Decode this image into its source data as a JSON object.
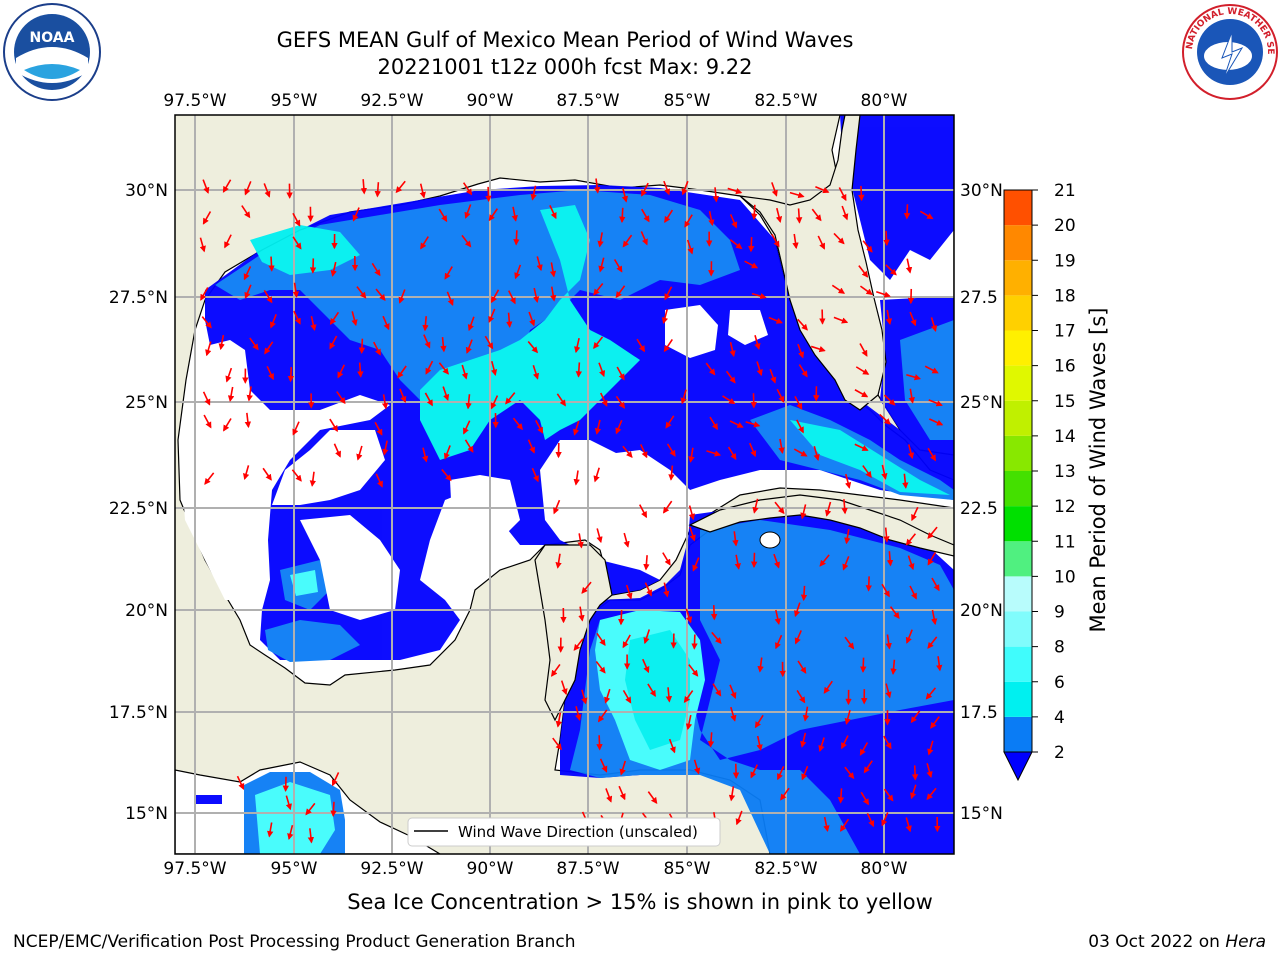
{
  "header": {
    "title_line1": "GEFS MEAN Gulf of Mexico Mean Period of Wind Waves",
    "title_line2": "20221001 t12z 000h fcst   Max: 9.22"
  },
  "map": {
    "lon_ticks": [
      "97.5°W",
      "95°W",
      "92.5°W",
      "90°W",
      "87.5°W",
      "85°W",
      "82.5°W",
      "80°W"
    ],
    "lat_ticks": [
      "30°N",
      "27.5°N",
      "25°N",
      "22.5°N",
      "20°N",
      "17.5°N",
      "15°N"
    ],
    "lat_ticks_right": [
      "30°N",
      "27.5",
      "25°N",
      "22.5",
      "20°N",
      "17.5",
      "15°N"
    ],
    "legend_label": "Wind Wave Direction (unscaled)",
    "colors": {
      "land": "#eeeedd",
      "water_empty": "#ffffff",
      "arrow": "#ff0000",
      "grid": "#b0b0b0"
    }
  },
  "colorbar": {
    "label": "Mean Period of Wind Waves [s]",
    "ticks": [
      "2",
      "4",
      "6",
      "8",
      "9",
      "10",
      "11",
      "12",
      "13",
      "14",
      "15",
      "16",
      "17",
      "18",
      "19",
      "20",
      "21"
    ],
    "colors": [
      "#0a7cf5",
      "#00f0f0",
      "#40fcfc",
      "#80fcfc",
      "#b8fcfc",
      "#50f080",
      "#00e000",
      "#44e000",
      "#88e800",
      "#c0f000",
      "#e0f800",
      "#fff000",
      "#ffd000",
      "#ffb000",
      "#ff8800",
      "#ff5000",
      "#ff2000",
      "#ff0000"
    ],
    "extend_color": "#0000ff"
  },
  "footer": {
    "sea_ice_note": "Sea Ice Concentration > 15% is shown in pink to yellow",
    "producer": "NCEP/EMC/Verification Post Processing Product Generation Branch",
    "date": "03 Oct 2022 on ",
    "machine": "Hera"
  },
  "logos": {
    "left": "NOAA",
    "right": "NATIONAL WEATHER SERVICE"
  }
}
